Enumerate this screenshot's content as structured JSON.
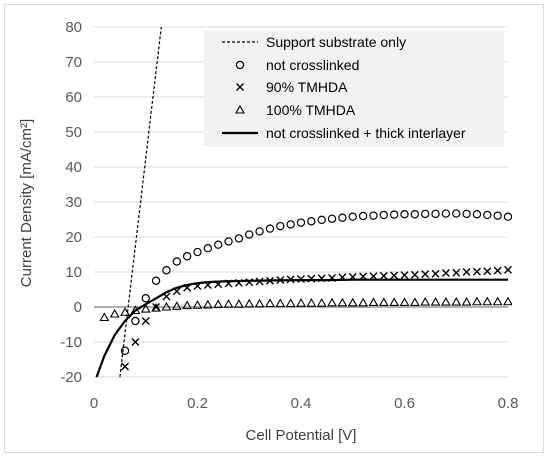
{
  "chart_data": {
    "type": "scatter",
    "xlabel": "Cell Potential [V]",
    "ylabel": "Current Density [mA/cm²]",
    "xlim": [
      0,
      0.8
    ],
    "ylim": [
      -20,
      80
    ],
    "xticks": [
      "0",
      "0.2",
      "0.4",
      "0.6",
      "0.8"
    ],
    "yticks": [
      "-20",
      "-10",
      "0",
      "10",
      "20",
      "30",
      "40",
      "50",
      "60",
      "70",
      "80"
    ],
    "xtick_values": [
      0,
      0.2,
      0.4,
      0.6,
      0.8
    ],
    "ytick_values": [
      -20,
      -10,
      0,
      10,
      20,
      30,
      40,
      50,
      60,
      70,
      80
    ],
    "grid": "horizontal",
    "legend_position": "top-right",
    "series": [
      {
        "name": "Support substrate only",
        "style": "dashed-line",
        "color": "#000000",
        "x": [
          0.05,
          0.07,
          0.09,
          0.11,
          0.13
        ],
        "y": [
          -20,
          5,
          30,
          55,
          80
        ]
      },
      {
        "name": "not crosslinked",
        "style": "circle",
        "color": "#000000",
        "x": [
          0.06,
          0.08,
          0.1,
          0.12,
          0.14,
          0.16,
          0.18,
          0.2,
          0.22,
          0.24,
          0.26,
          0.28,
          0.3,
          0.32,
          0.34,
          0.36,
          0.38,
          0.4,
          0.42,
          0.44,
          0.46,
          0.48,
          0.5,
          0.52,
          0.54,
          0.56,
          0.58,
          0.6,
          0.62,
          0.64,
          0.66,
          0.68,
          0.7,
          0.72,
          0.74,
          0.76,
          0.78,
          0.8
        ],
        "y": [
          -12.5,
          -4,
          2.5,
          7.5,
          10.5,
          13,
          14.5,
          15.7,
          16.8,
          17.8,
          18.7,
          19.6,
          20.7,
          21.6,
          22.4,
          23.1,
          23.6,
          24.1,
          24.5,
          24.9,
          25.2,
          25.5,
          25.8,
          26.0,
          26.1,
          26.3,
          26.4,
          26.5,
          26.5,
          26.6,
          26.6,
          26.7,
          26.7,
          26.6,
          26.5,
          26.3,
          26.1,
          25.8
        ]
      },
      {
        "name": "90% TMHDA",
        "style": "x",
        "color": "#000000",
        "x": [
          0.06,
          0.08,
          0.1,
          0.12,
          0.14,
          0.16,
          0.18,
          0.2,
          0.22,
          0.24,
          0.26,
          0.28,
          0.3,
          0.32,
          0.34,
          0.36,
          0.38,
          0.4,
          0.42,
          0.44,
          0.46,
          0.48,
          0.5,
          0.52,
          0.54,
          0.56,
          0.58,
          0.6,
          0.62,
          0.64,
          0.66,
          0.68,
          0.7,
          0.72,
          0.74,
          0.76,
          0.78,
          0.8
        ],
        "y": [
          -17,
          -10,
          -4,
          0,
          3,
          4.5,
          5.5,
          6,
          6.3,
          6.5,
          6.7,
          6.9,
          7.1,
          7.3,
          7.5,
          7.7,
          7.9,
          8.0,
          8.1,
          8.2,
          8.3,
          8.5,
          8.6,
          8.7,
          8.8,
          8.9,
          9.0,
          9.1,
          9.2,
          9.4,
          9.5,
          9.7,
          9.8,
          10.0,
          10.1,
          10.2,
          10.4,
          10.6
        ]
      },
      {
        "name": "100% TMHDA",
        "style": "triangle",
        "color": "#000000",
        "x": [
          0.02,
          0.04,
          0.06,
          0.08,
          0.1,
          0.12,
          0.14,
          0.16,
          0.18,
          0.2,
          0.22,
          0.24,
          0.26,
          0.28,
          0.3,
          0.32,
          0.34,
          0.36,
          0.38,
          0.4,
          0.42,
          0.44,
          0.46,
          0.48,
          0.5,
          0.52,
          0.54,
          0.56,
          0.58,
          0.6,
          0.62,
          0.64,
          0.66,
          0.68,
          0.7,
          0.72,
          0.74,
          0.76,
          0.78,
          0.8
        ],
        "y": [
          -3,
          -2,
          -1.5,
          -1,
          -0.6,
          -0.3,
          0,
          0.2,
          0.4,
          0.5,
          0.6,
          0.7,
          0.8,
          0.8,
          0.9,
          0.9,
          1.0,
          1.0,
          1.0,
          1.1,
          1.1,
          1.1,
          1.2,
          1.2,
          1.2,
          1.2,
          1.3,
          1.3,
          1.3,
          1.3,
          1.3,
          1.4,
          1.4,
          1.4,
          1.4,
          1.4,
          1.5,
          1.5,
          1.5,
          1.5
        ]
      },
      {
        "name": "not crosslinked + thick interlayer",
        "style": "solid-line",
        "color": "#000000",
        "x": [
          0.005,
          0.02,
          0.04,
          0.06,
          0.08,
          0.1,
          0.12,
          0.14,
          0.16,
          0.18,
          0.2,
          0.22,
          0.25,
          0.3,
          0.35,
          0.4,
          0.45,
          0.5,
          0.55,
          0.6,
          0.65,
          0.7,
          0.75,
          0.8
        ],
        "y": [
          -20,
          -14,
          -8,
          -4,
          -1,
          0.8,
          2.5,
          4.2,
          5.5,
          6.3,
          6.8,
          7.1,
          7.3,
          7.5,
          7.6,
          7.7,
          7.7,
          7.8,
          7.8,
          7.8,
          7.8,
          7.8,
          7.8,
          7.8
        ]
      }
    ]
  }
}
